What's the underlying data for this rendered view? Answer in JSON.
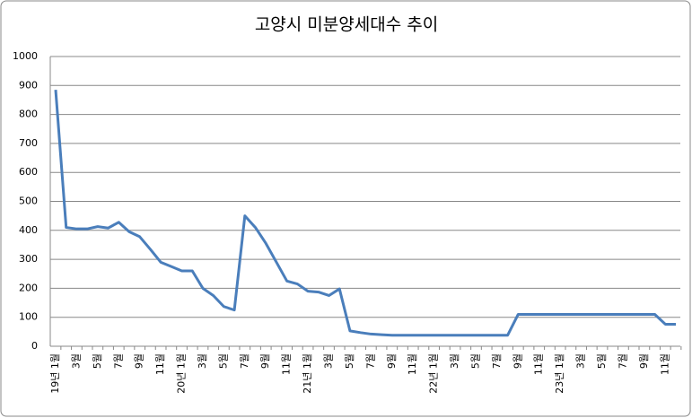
{
  "chart_data": {
    "type": "line",
    "title": "고양시 미분양세대수 추이",
    "categories": [
      "19년 1월",
      null,
      "3월",
      null,
      "5월",
      null,
      "7월",
      null,
      "9월",
      null,
      "11월",
      null,
      "20년 1월",
      null,
      "3월",
      null,
      "5월",
      null,
      "7월",
      null,
      "9월",
      null,
      "11월",
      null,
      "21년 1월",
      null,
      "3월",
      null,
      "5월",
      null,
      "7월",
      null,
      "9월",
      null,
      "11월",
      null,
      "22년 1월",
      null,
      "3월",
      null,
      "5월",
      null,
      "7월",
      null,
      "9월",
      null,
      "11월",
      null,
      "23년 1월",
      null,
      "3월",
      null,
      "5월",
      null,
      "7월",
      null,
      "9월",
      null,
      "11월",
      null
    ],
    "series": [
      {
        "color": "#4a7ebb",
        "values": [
          885,
          410,
          405,
          405,
          413,
          408,
          428,
          395,
          378,
          335,
          290,
          275,
          260,
          260,
          200,
          175,
          137,
          125,
          450,
          410,
          355,
          290,
          225,
          215,
          190,
          187,
          175,
          198,
          53,
          47,
          42,
          40,
          38,
          38,
          38,
          38,
          38,
          38,
          38,
          38,
          38,
          38,
          38,
          38,
          110,
          110,
          110,
          110,
          110,
          110,
          110,
          110,
          110,
          110,
          110,
          110,
          110,
          110,
          76,
          76
        ]
      }
    ],
    "ylim": [
      0,
      1000
    ],
    "yticks": [
      0,
      100,
      200,
      300,
      400,
      500,
      600,
      700,
      800,
      900,
      1000
    ],
    "grid": true
  }
}
